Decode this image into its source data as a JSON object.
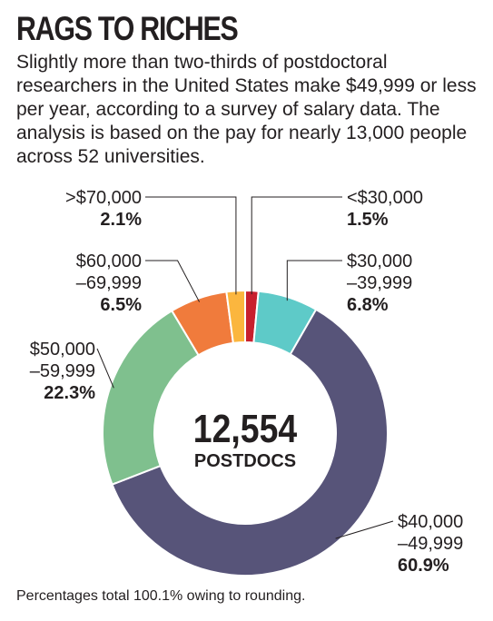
{
  "title": "RAGS TO RICHES",
  "subtitle": "Slightly more than two-thirds of postdoctoral researchers in the United States make $49,999 or less per year, according to a survey of salary data. The analysis is based on the pay for nearly 13,000 people across 52 universities.",
  "center": {
    "value": "12,554",
    "unit": "POSTDOCS"
  },
  "footnote": "Percentages total 100.1% owing to rounding.",
  "colors": {
    "lt30k": "#c8202e",
    "30to40k": "#5ecac8",
    "40to50k": "#575479",
    "50to60k": "#7fc08e",
    "60to70k": "#f07b3c",
    "gt70k": "#fbb63e"
  },
  "chart_data": {
    "type": "pie",
    "donut": true,
    "total_label": "12,554 POSTDOCS",
    "slices": [
      {
        "label": "<$30,000",
        "label_lines": [
          "<$30,000"
        ],
        "pct_label": "1.5%",
        "value": 1.5,
        "color": "#c8202e"
      },
      {
        "label": "$30,000 –39,999",
        "label_lines": [
          "$30,000",
          "–39,999"
        ],
        "pct_label": "6.8%",
        "value": 6.8,
        "color": "#5ecac8"
      },
      {
        "label": "$40,000 –49,999",
        "label_lines": [
          "$40,000",
          "–49,999"
        ],
        "pct_label": "60.9%",
        "value": 60.9,
        "color": "#575479"
      },
      {
        "label": "$50,000 –59,999",
        "label_lines": [
          "$50,000",
          "–59,999"
        ],
        "pct_label": "22.3%",
        "value": 22.3,
        "color": "#7fc08e"
      },
      {
        "label": "$60,000 –69,999",
        "label_lines": [
          "$60,000",
          "–69,999"
        ],
        "pct_label": "6.5%",
        "value": 6.5,
        "color": "#f07b3c"
      },
      {
        "label": ">$70,000",
        "label_lines": [
          ">$70,000"
        ],
        "pct_label": "2.1%",
        "value": 2.1,
        "color": "#fbb63e"
      }
    ]
  }
}
